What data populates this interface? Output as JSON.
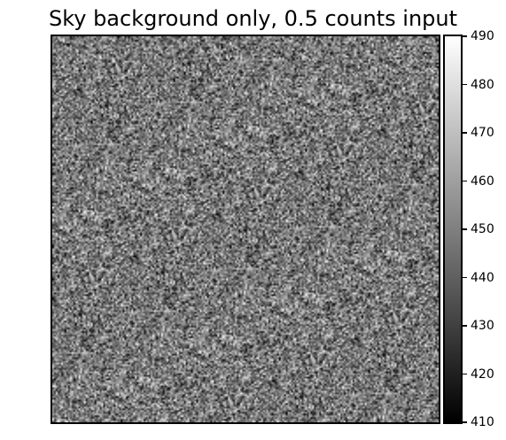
{
  "chart_data": {
    "type": "heatmap",
    "title": "Sky background only, 0.5 counts input",
    "colormap": "gray",
    "colorbar": {
      "vmin": 410,
      "vmax": 490,
      "ticks": [
        410,
        420,
        430,
        440,
        450,
        460,
        470,
        480,
        490
      ],
      "tick_labels": [
        "410",
        "420",
        "430",
        "440",
        "450",
        "460",
        "470",
        "480",
        "490"
      ]
    },
    "axes_visible": false,
    "grid": false
  }
}
